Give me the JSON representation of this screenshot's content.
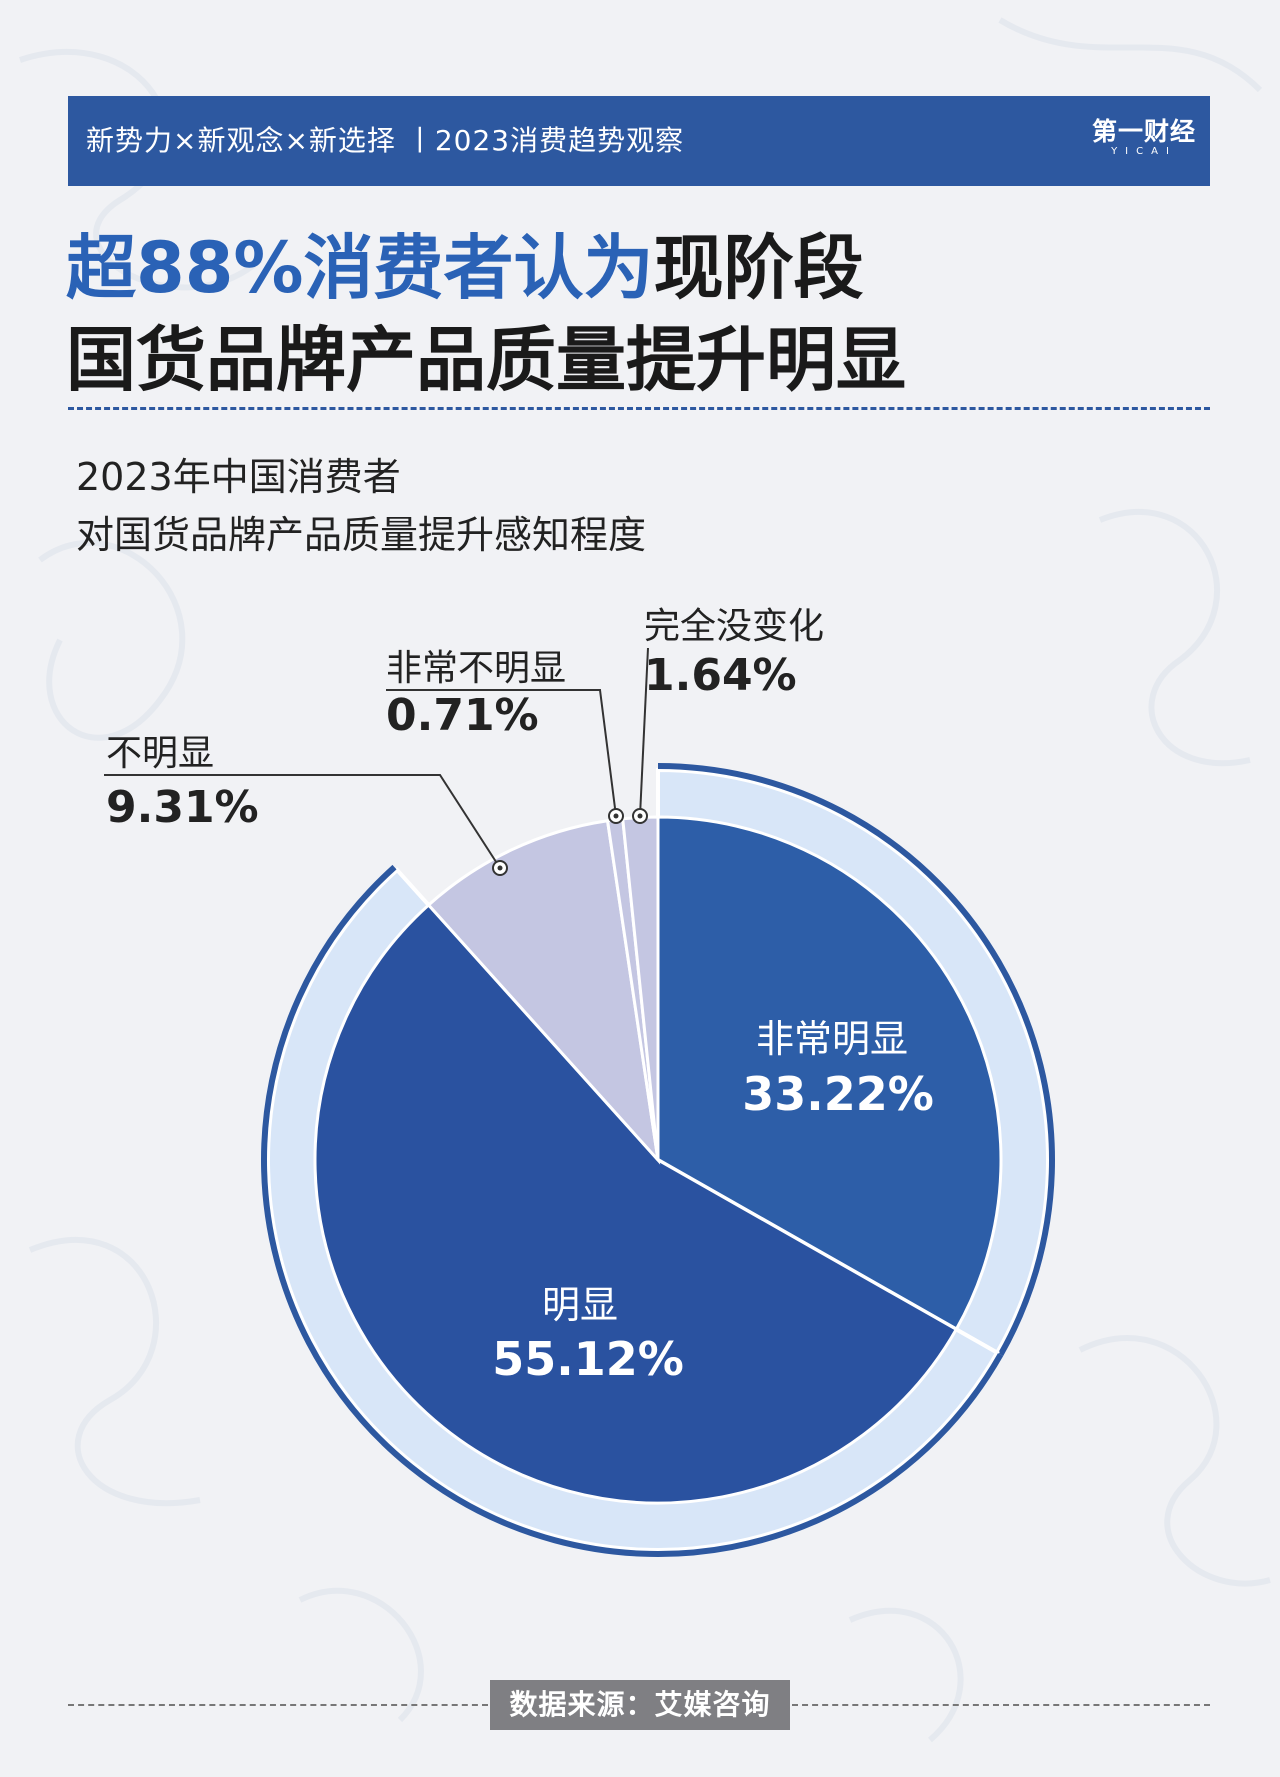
{
  "header": {
    "text": "新势力×新观念×新选择 丨2023消费趋势观察",
    "logo": "第一财经",
    "logo_sub": "YICAI"
  },
  "headline": {
    "highlight": "超88%消费者认为",
    "rest": "现阶段",
    "line2": "国货品牌产品质量提升明显"
  },
  "subtitle": {
    "line1": "2023年中国消费者",
    "line2": "对国货品牌产品质量提升感知程度"
  },
  "source": "数据来源：艾媒咨询",
  "colors": {
    "header_bg": "#2d58a0",
    "highlight": "#2a62b6",
    "slice_very": "#2d5ea8",
    "slice_obvious": "#2a52a0",
    "slice_not": "#c4c6e2",
    "ring": "#d8e6f8",
    "ring_outline": "#2d58a0"
  },
  "chart_data": {
    "type": "pie",
    "title": "2023年中国消费者对国货品牌产品质量提升感知程度",
    "slices": [
      {
        "label": "非常明显",
        "value": 33.22,
        "value_text": "33.22%"
      },
      {
        "label": "明显",
        "value": 55.12,
        "value_text": "55.12%"
      },
      {
        "label": "不明显",
        "value": 9.31,
        "value_text": "9.31%"
      },
      {
        "label": "非常不明显",
        "value": 0.71,
        "value_text": "0.71%"
      },
      {
        "label": "完全没变化",
        "value": 1.64,
        "value_text": "1.64%"
      }
    ]
  }
}
